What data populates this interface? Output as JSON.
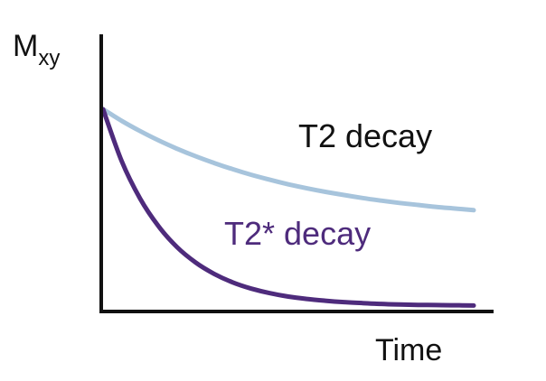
{
  "chart_data": {
    "type": "line",
    "ylabel": "M",
    "ylabel_subscript": "xy",
    "xlabel": "Time",
    "xlim": [
      0,
      10
    ],
    "ylim": [
      0,
      1
    ],
    "grid": false,
    "legend": "none",
    "series": [
      {
        "name": "T2 decay",
        "color": "#a7c4dc",
        "label_color": "#111111",
        "x": [
          0,
          0.5,
          1,
          1.5,
          2,
          2.5,
          3,
          3.5,
          4,
          4.5,
          5,
          5.5,
          6,
          6.5,
          7,
          7.5,
          8,
          8.5,
          9,
          9.5,
          10
        ],
        "y": [
          1.0,
          0.942,
          0.89,
          0.843,
          0.801,
          0.763,
          0.729,
          0.698,
          0.67,
          0.645,
          0.622,
          0.602,
          0.584,
          0.568,
          0.553,
          0.54,
          0.528,
          0.518,
          0.508,
          0.5,
          0.492
        ]
      },
      {
        "name": "T2* decay",
        "color": "#4e2b7c",
        "label_color": "#4e2b7c",
        "x": [
          0,
          0.5,
          1,
          1.5,
          2,
          2.5,
          3,
          3.5,
          4,
          4.5,
          5,
          5.5,
          6,
          6.5,
          7,
          7.5,
          8,
          8.5,
          9,
          9.5,
          10
        ],
        "y": [
          1.0,
          0.74,
          0.55,
          0.41,
          0.305,
          0.228,
          0.171,
          0.128,
          0.097,
          0.074,
          0.057,
          0.045,
          0.036,
          0.029,
          0.024,
          0.02,
          0.017,
          0.015,
          0.014,
          0.013,
          0.012
        ]
      }
    ]
  }
}
